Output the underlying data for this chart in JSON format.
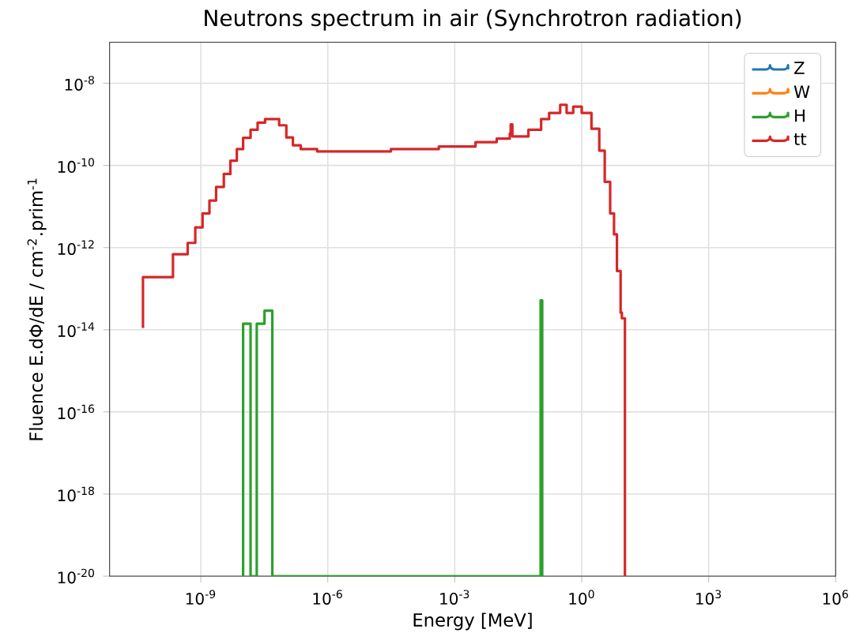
{
  "chart_data": {
    "type": "step",
    "title": "Neutrons spectrum in air (Synchrotron radiation)",
    "xlabel": "Energy [MeV]",
    "ylabel": "Fluence E.dΦ/dE / cm$^{-2}$.prim$^{-1}$",
    "log": "xy",
    "grid": true,
    "legend": "top right",
    "xlim": [
      7e-12,
      1000000
    ],
    "ylim": [
      1e-20,
      1e-07
    ],
    "xticks": [
      {
        "value": 1e-09,
        "label": "10$^{-9}$"
      },
      {
        "value": 1e-06,
        "label": "10$^{-6}$"
      },
      {
        "value": 0.001,
        "label": "10$^{-3}$"
      },
      {
        "value": 1,
        "label": "10$^{0}$"
      },
      {
        "value": 1000,
        "label": "10$^{3}$"
      },
      {
        "value": 1000000,
        "label": "10$^{6}$"
      }
    ],
    "yticks": [
      {
        "value": 1e-20,
        "label": "10$^{-20}$"
      },
      {
        "value": 1e-18,
        "label": "10$^{-18}$"
      },
      {
        "value": 1e-16,
        "label": "10$^{-16}$"
      },
      {
        "value": 1e-14,
        "label": "10$^{-14}$"
      },
      {
        "value": 1e-12,
        "label": "10$^{-12}$"
      },
      {
        "value": 1e-10,
        "label": "10$^{-10}$"
      },
      {
        "value": 1e-08,
        "label": "10$^{-8}$"
      }
    ],
    "x": [
      4.3e-11,
      4.3e-11,
      2.2e-10,
      4.9e-10,
      7.4e-10,
      1.1e-09,
      1.6e-09,
      2.3e-09,
      3.5e-09,
      5e-09,
      7.1e-09,
      1e-08,
      1.5e-08,
      2.2e-08,
      3.3e-08,
      7.1e-08,
      1.05e-07,
      1.5e-07,
      2.3e-07,
      5.6e-07,
      3.1e-06,
      3.1e-05,
      0.00042,
      0.0031,
      0.0098,
      0.02,
      0.021,
      0.023,
      0.055,
      0.11,
      0.17,
      0.31,
      0.44,
      0.63,
      1.0,
      1.7,
      2.6,
      3.5,
      4.7,
      5.8,
      6.8,
      8.3,
      8.9,
      10.5
    ],
    "series": [
      {
        "name": "Z",
        "color": "#1f77b4",
        "values": [
          null,
          null,
          null,
          null,
          null,
          null,
          null,
          null,
          null,
          null,
          null,
          null,
          null,
          null,
          null,
          null,
          null,
          null,
          null,
          null,
          null,
          null,
          null,
          null,
          null,
          null,
          null,
          null,
          null,
          null,
          null,
          null,
          null,
          null,
          null,
          null,
          null,
          null,
          null,
          null,
          null,
          null,
          null,
          null
        ]
      },
      {
        "name": "W",
        "color": "#ff7f0e",
        "values": [
          null,
          null,
          null,
          null,
          null,
          null,
          null,
          null,
          null,
          null,
          null,
          null,
          null,
          null,
          null,
          null,
          null,
          null,
          null,
          null,
          null,
          null,
          null,
          null,
          null,
          null,
          null,
          null,
          null,
          null,
          null,
          null,
          null,
          null,
          null,
          null,
          null,
          null,
          null,
          null,
          null,
          null,
          null,
          null
        ]
      },
      {
        "name": "H",
        "color": "#2ca02c",
        "x": [
          1e-08,
          1e-08,
          1.5e-08,
          2.1e-08,
          3.2e-08,
          4.9e-08,
          0.107,
          0.117
        ],
        "values": [
          1e-20,
          1.4e-14,
          1e-20,
          1.4e-14,
          2.9e-14,
          1e-20,
          5.2e-14,
          1e-20
        ]
      },
      {
        "name": "tt",
        "color": "#d62728",
        "values": [
          1.1e-14,
          1.9e-13,
          6.9e-13,
          1.3e-12,
          3.1e-12,
          6.8e-12,
          1.4e-11,
          3e-11,
          6.2e-11,
          1.3e-10,
          2.5e-10,
          4.7e-10,
          7.4e-10,
          1.1e-09,
          1.35e-09,
          9.5e-10,
          4.8e-10,
          3.1e-10,
          2.5e-10,
          2.2e-10,
          2.2e-10,
          2.5e-10,
          2.9e-10,
          3.7e-10,
          4.5e-10,
          6e-10,
          1e-09,
          5.1e-10,
          7.4e-10,
          1.35e-09,
          1.9e-09,
          3e-09,
          1.9e-09,
          2.7e-09,
          1.9e-09,
          7.8e-10,
          2.3e-10,
          4e-11,
          6.8e-12,
          2.1e-12,
          2.7e-13,
          2.6e-14,
          1.9e-14,
          1e-20
        ]
      }
    ]
  }
}
